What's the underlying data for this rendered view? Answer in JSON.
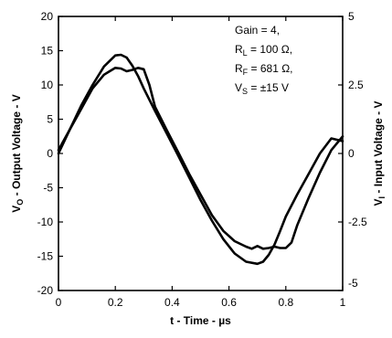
{
  "chart_data": {
    "type": "line",
    "xlabel": "t - Time - µs",
    "ylabel_left": {
      "base": "V",
      "sub": "O",
      "rest": " - Output Voltage - V"
    },
    "ylabel_right": {
      "base": "V",
      "sub": "I",
      "rest": " - Input Voltage - V"
    },
    "xlim": [
      0,
      1
    ],
    "ylim_left": [
      -20,
      20
    ],
    "ylim_right": [
      -5,
      5
    ],
    "x_ticks": [
      {
        "value": 0,
        "label": "0"
      },
      {
        "value": 0.2,
        "label": "0.2"
      },
      {
        "value": 0.4,
        "label": "0.4"
      },
      {
        "value": 0.6,
        "label": "0.6"
      },
      {
        "value": 0.8,
        "label": "0.8"
      },
      {
        "value": 1,
        "label": "1"
      }
    ],
    "y_ticks_left": [
      {
        "value": 20,
        "label": "20"
      },
      {
        "value": 15,
        "label": "15"
      },
      {
        "value": 10,
        "label": "10"
      },
      {
        "value": 5,
        "label": "5"
      },
      {
        "value": 0,
        "label": "0"
      },
      {
        "value": -5,
        "label": "-5"
      },
      {
        "value": -10,
        "label": "-10"
      },
      {
        "value": -15,
        "label": "-15"
      },
      {
        "value": -20,
        "label": "-20"
      }
    ],
    "y_ticks_right": [
      {
        "value": 5,
        "label": "5"
      },
      {
        "value": 2.5,
        "label": "2.5"
      },
      {
        "value": 0,
        "label": "0"
      },
      {
        "value": -2.5,
        "label": "-2.5"
      },
      {
        "value": -5,
        "label": "-5"
      }
    ],
    "grid": false,
    "annotations": [
      {
        "base": "Gain = 4,",
        "sub": "",
        "rest": ""
      },
      {
        "base": "R",
        "sub": "L",
        "rest": " = 100 Ω,"
      },
      {
        "base": "R",
        "sub": "F",
        "rest": " = 681 Ω,"
      },
      {
        "base": "V",
        "sub": "S",
        "rest": " = ±15 V"
      }
    ],
    "series": [
      {
        "axis": "left",
        "x": [
          0,
          0.04,
          0.08,
          0.12,
          0.16,
          0.2,
          0.22,
          0.24,
          0.26,
          0.28,
          0.3,
          0.34,
          0.38,
          0.42,
          0.46,
          0.5,
          0.54,
          0.58,
          0.62,
          0.66,
          0.7,
          0.72,
          0.74,
          0.76,
          0.78,
          0.8,
          0.84,
          0.88,
          0.92,
          0.96,
          1.0
        ],
        "y": [
          0,
          3.5,
          7,
          10,
          12.7,
          14.3,
          14.4,
          14.0,
          12.8,
          11.3,
          9.5,
          6.2,
          3.0,
          -0.2,
          -3.5,
          -6.8,
          -9.8,
          -12.5,
          -14.6,
          -15.8,
          -16.1,
          -15.8,
          -14.8,
          -13.3,
          -11.3,
          -9.2,
          -6.0,
          -3.0,
          0.0,
          2.2,
          1.8
        ]
      },
      {
        "axis": "left",
        "x": [
          0,
          0.04,
          0.08,
          0.12,
          0.16,
          0.18,
          0.2,
          0.22,
          0.24,
          0.26,
          0.28,
          0.3,
          0.32,
          0.34,
          0.38,
          0.42,
          0.46,
          0.5,
          0.54,
          0.58,
          0.62,
          0.66,
          0.68,
          0.7,
          0.72,
          0.74,
          0.76,
          0.78,
          0.8,
          0.82,
          0.84,
          0.88,
          0.92,
          0.96,
          1.0
        ],
        "y": [
          0.5,
          3.5,
          6.5,
          9.5,
          11.5,
          12.0,
          12.5,
          12.4,
          12.0,
          12.2,
          12.5,
          12.3,
          10.0,
          6.8,
          3.5,
          0.3,
          -3.0,
          -6.0,
          -9.0,
          -11.3,
          -12.8,
          -13.6,
          -13.9,
          -13.5,
          -13.9,
          -13.8,
          -13.6,
          -13.8,
          -13.8,
          -13.0,
          -10.5,
          -6.5,
          -2.8,
          0.5,
          2.5
        ]
      }
    ]
  }
}
